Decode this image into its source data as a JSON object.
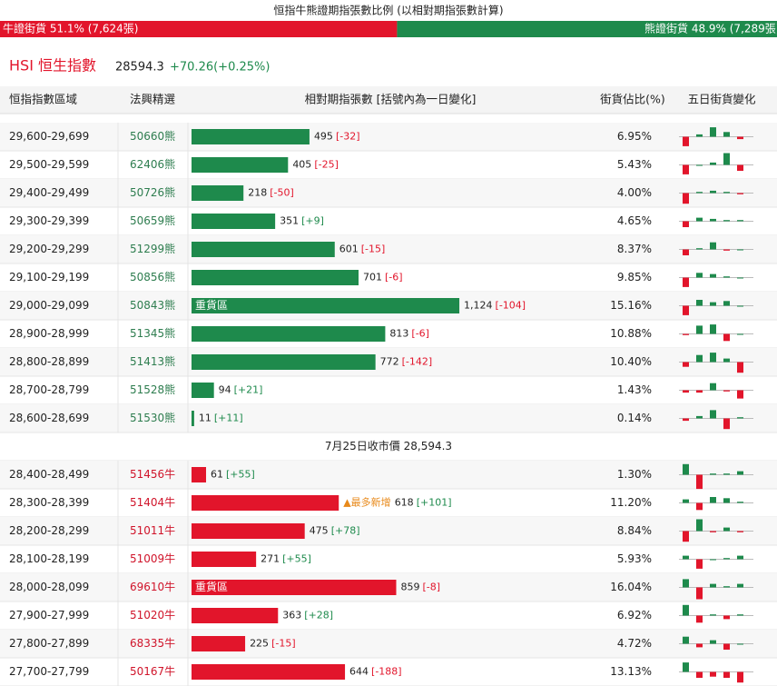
{
  "title": "恒指牛熊證期指張數比例 (以相對期指張數計算)",
  "ratio": {
    "bull": {
      "label": "牛證街貨 51.1% (7,624張)",
      "pct": 51.1
    },
    "bear": {
      "label": "熊證街貨 48.9% (7,289張)",
      "pct": 48.9
    }
  },
  "index": {
    "name": "HSI 恒生指數",
    "price": "28594.3",
    "change": "+70.26(+0.25%)"
  },
  "columns": [
    "恒指指數區域",
    "法興精選",
    "相對期指張數 [括號內為一日變化]",
    "街貨佔比(%)",
    "五日街貨變化"
  ],
  "divider": "7月25日收市價 28,594.3",
  "bear_rows": [
    {
      "range": "29,600-29,699",
      "code": "50660熊",
      "count": 495,
      "change": "[-32]",
      "pct": "6.95%",
      "five_day": [
        -8,
        2,
        8,
        4,
        -2
      ]
    },
    {
      "range": "29,500-29,599",
      "code": "62406熊",
      "count": 405,
      "change": "[-25]",
      "pct": "5.43%",
      "five_day": [
        -8,
        0,
        2,
        10,
        -5
      ]
    },
    {
      "range": "29,400-29,499",
      "code": "50726熊",
      "count": 218,
      "change": "[-50]",
      "pct": "4.00%",
      "five_day": [
        -9,
        1,
        2,
        1,
        -1
      ]
    },
    {
      "range": "29,300-29,399",
      "code": "50659熊",
      "count": 351,
      "change": "[+9]",
      "pct": "4.65%",
      "five_day": [
        -5,
        3,
        2,
        1,
        1
      ]
    },
    {
      "range": "29,200-29,299",
      "code": "51299熊",
      "count": 601,
      "change": "[-15]",
      "pct": "8.37%",
      "five_day": [
        -5,
        1,
        6,
        -1,
        0
      ]
    },
    {
      "range": "29,100-29,199",
      "code": "50856熊",
      "count": 701,
      "change": "[-6]",
      "pct": "9.85%",
      "five_day": [
        -8,
        4,
        3,
        1,
        0
      ]
    },
    {
      "range": "29,000-29,099",
      "code": "50843熊",
      "count": {
        "value": 1124,
        "label": "1,124"
      },
      "change": "[-104]",
      "pct": "15.16%",
      "note": "重貨區",
      "five_day": [
        -8,
        5,
        3,
        4,
        0
      ]
    },
    {
      "range": "28,900-28,999",
      "code": "51345熊",
      "count": 813,
      "change": "[-6]",
      "pct": "10.88%",
      "five_day": [
        -1,
        7,
        8,
        -6,
        0
      ]
    },
    {
      "range": "28,800-28,899",
      "code": "51413熊",
      "count": 772,
      "change": "[-142]",
      "pct": "10.40%",
      "five_day": [
        -4,
        6,
        8,
        3,
        -9
      ]
    },
    {
      "range": "28,700-28,799",
      "code": "51528熊",
      "count": 94,
      "change": "[+21]",
      "pct": "1.43%",
      "five_day": [
        -2,
        -2,
        6,
        -1,
        -7
      ]
    },
    {
      "range": "28,600-28,699",
      "code": "51530熊",
      "count": 11,
      "change": "[+11]",
      "pct": "0.14%",
      "five_day": [
        -2,
        2,
        7,
        -9,
        1
      ]
    }
  ],
  "bull_rows": [
    {
      "range": "28,400-28,499",
      "code": "51456牛",
      "count": 61,
      "change": "[+55]",
      "pct": "1.30%",
      "five_day": [
        9,
        -12,
        1,
        1,
        3
      ]
    },
    {
      "range": "28,300-28,399",
      "code": "51404牛",
      "count": 618,
      "change": "[+101]",
      "pct": "11.20%",
      "tag": "▲最多新增",
      "five_day": [
        3,
        -6,
        5,
        4,
        1
      ]
    },
    {
      "range": "28,200-28,299",
      "code": "51011牛",
      "count": 475,
      "change": "[+78]",
      "pct": "8.84%",
      "five_day": [
        -9,
        10,
        -1,
        3,
        -1
      ]
    },
    {
      "range": "28,100-28,199",
      "code": "51009牛",
      "count": 271,
      "change": "[+55]",
      "pct": "5.93%",
      "five_day": [
        3,
        -8,
        0,
        1,
        3
      ]
    },
    {
      "range": "28,000-28,099",
      "code": "69610牛",
      "count": 859,
      "change": "[-8]",
      "pct": "16.04%",
      "note": "重貨區",
      "five_day": [
        7,
        -10,
        3,
        1,
        3
      ]
    },
    {
      "range": "27,900-27,999",
      "code": "51020牛",
      "count": 363,
      "change": "[+28]",
      "pct": "6.92%",
      "five_day": [
        9,
        -6,
        1,
        -3,
        1
      ]
    },
    {
      "range": "27,800-27,899",
      "code": "68335牛",
      "count": 225,
      "change": "[-15]",
      "pct": "4.72%",
      "five_day": [
        6,
        -3,
        3,
        -5,
        0
      ]
    },
    {
      "range": "27,700-27,799",
      "code": "50167牛",
      "count": 644,
      "change": "[-188]",
      "pct": "13.13%",
      "five_day": [
        8,
        -5,
        -4,
        -5,
        -9
      ]
    }
  ]
}
